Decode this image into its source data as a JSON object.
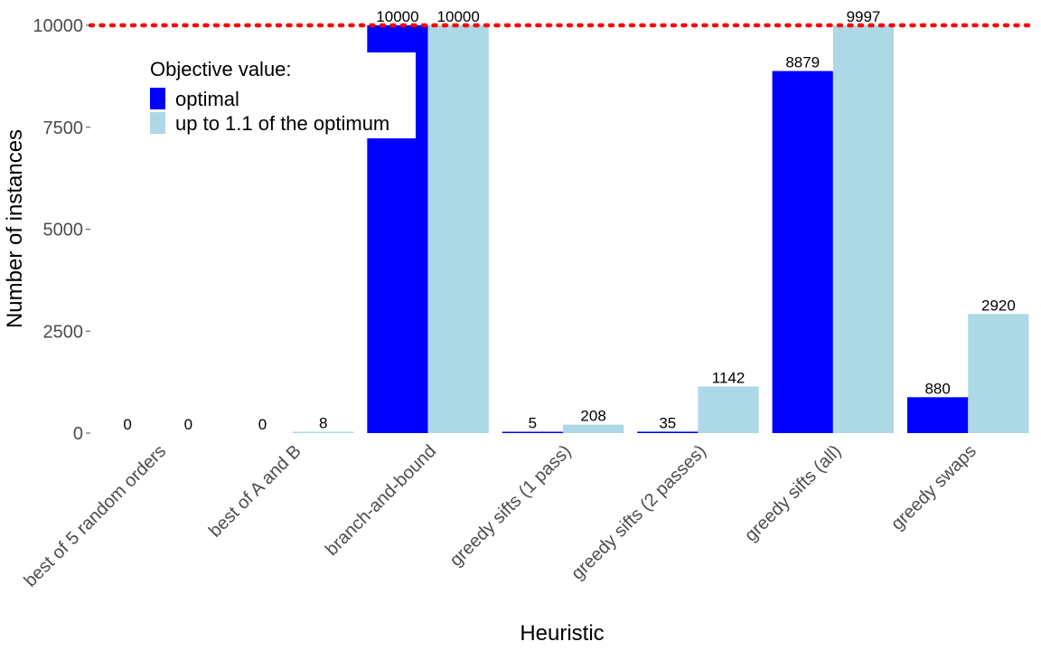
{
  "chart_data": {
    "type": "bar",
    "title": "",
    "xlabel": "Heuristic",
    "ylabel": "Number of instances",
    "ylim": [
      0,
      10000
    ],
    "yticks": [
      0,
      2500,
      5000,
      7500,
      10000
    ],
    "ytick_labels": [
      "0",
      "2500",
      "5000",
      "7500",
      "10000"
    ],
    "categories": [
      "best of 5 random orders",
      "best of A and B",
      "branch-and-bound",
      "greedy sifts (1 pass)",
      "greedy sifts (2 passes)",
      "greedy sifts (all)",
      "greedy swaps"
    ],
    "series": [
      {
        "name": "optimal",
        "color": "#0000ff",
        "values": [
          0,
          0,
          10000,
          5,
          35,
          8879,
          880
        ]
      },
      {
        "name": "up to 1.1 of the optimum",
        "color": "#add8e6",
        "values": [
          0,
          8,
          10000,
          208,
          1142,
          9997,
          2920
        ]
      }
    ],
    "reference_line": {
      "value": 10000,
      "color": "#ff0000",
      "style": "dotted"
    },
    "legend": {
      "title": "Objective value:",
      "placement": "top-left"
    },
    "grid": false
  }
}
